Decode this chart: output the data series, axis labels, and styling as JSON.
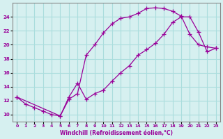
{
  "xlabel": "Windchill (Refroidissement éolien,°C)",
  "background_color": "#d6f0f0",
  "line_color": "#990099",
  "xlim": [
    -0.5,
    23.5
  ],
  "ylim": [
    9,
    26
  ],
  "xticks": [
    0,
    1,
    2,
    3,
    4,
    5,
    6,
    7,
    8,
    9,
    10,
    11,
    12,
    13,
    14,
    15,
    16,
    17,
    18,
    19,
    20,
    21,
    22,
    23
  ],
  "yticks": [
    10,
    12,
    14,
    16,
    18,
    20,
    22,
    24
  ],
  "grid_color": "#aadddd",
  "line1_x": [
    0,
    1,
    2,
    3,
    4,
    5,
    6,
    7,
    8,
    9,
    10,
    11,
    12,
    13,
    14,
    15,
    16,
    17,
    18,
    19,
    20,
    21,
    22,
    23
  ],
  "line1_y": [
    12.5,
    11.5,
    11.0,
    10.5,
    10.0,
    9.8,
    12.2,
    13.0,
    18.5,
    20.0,
    21.7,
    23.0,
    23.8,
    24.0,
    24.5,
    25.2,
    25.3,
    25.2,
    24.8,
    24.1,
    21.5,
    20.0,
    19.7,
    19.5
  ],
  "line2_x": [
    0,
    5,
    6,
    7,
    8,
    9,
    10,
    11,
    12,
    13,
    14,
    15,
    16,
    17,
    18,
    19,
    20,
    21,
    22,
    23
  ],
  "line2_y": [
    12.5,
    9.8,
    12.5,
    14.5,
    12.2,
    13.0,
    13.5,
    14.8,
    16.0,
    17.0,
    18.5,
    19.3,
    20.2,
    21.5,
    23.2,
    24.0,
    24.0,
    21.8,
    19.0,
    19.5
  ]
}
